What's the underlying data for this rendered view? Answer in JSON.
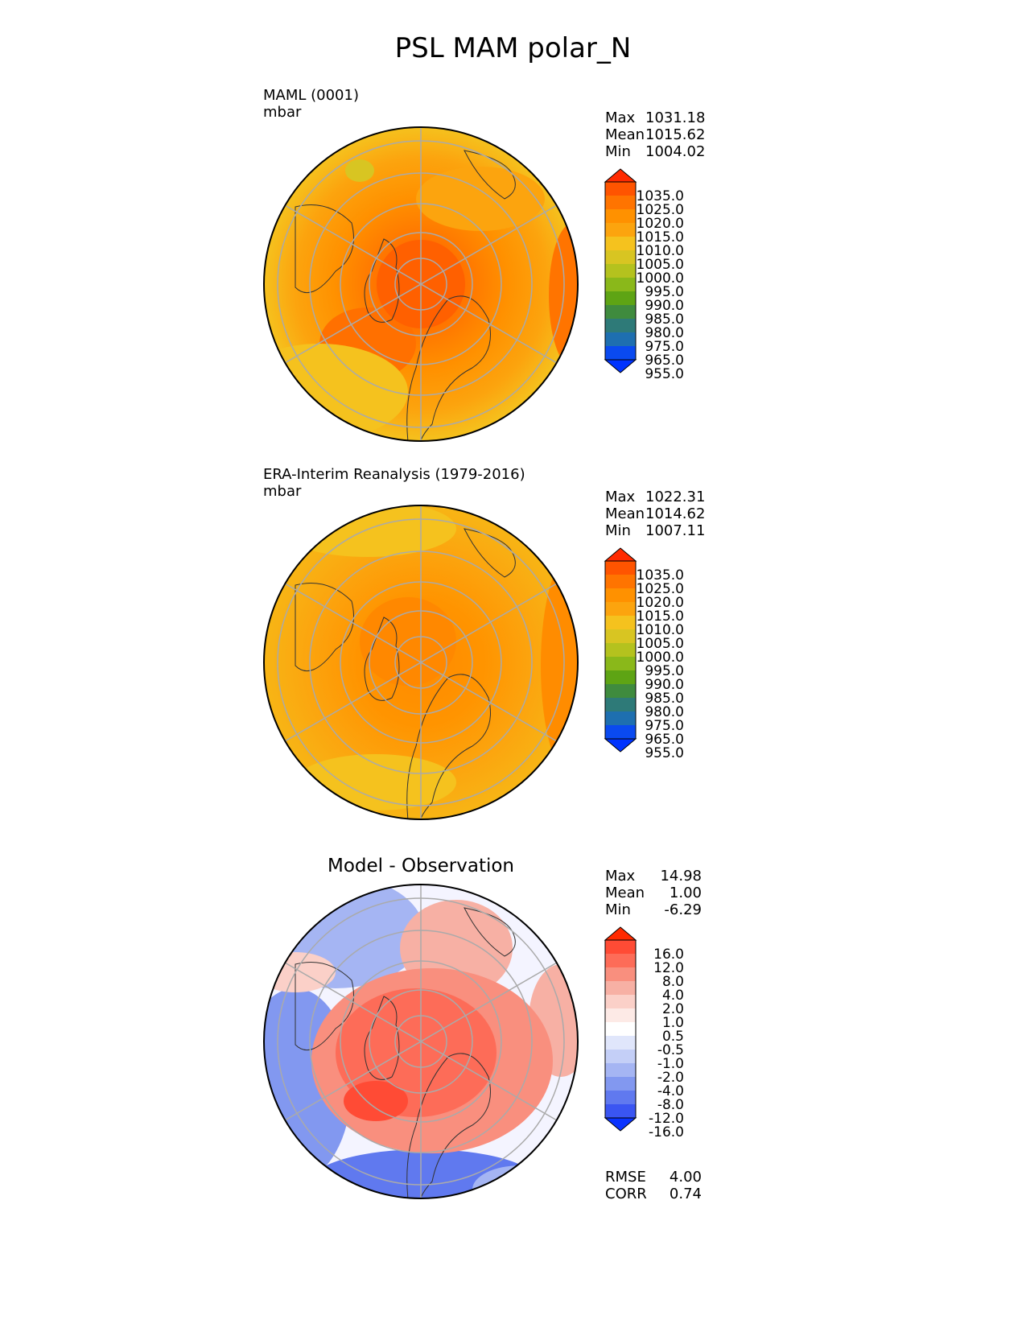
{
  "title": "PSL MAM polar_N",
  "panels": [
    {
      "id": "model",
      "label_line1": "MAML (0001)",
      "label_line2": "mbar",
      "stats": [
        {
          "key": "Max",
          "value": "1031.18"
        },
        {
          "key": "Mean",
          "value": "1015.62"
        },
        {
          "key": "Min",
          "value": "1004.02"
        }
      ]
    },
    {
      "id": "obs",
      "label_line1": "ERA-Interim Reanalysis (1979-2016)",
      "label_line2": "mbar",
      "stats": [
        {
          "key": "Max",
          "value": "1022.31"
        },
        {
          "key": "Mean",
          "value": "1014.62"
        },
        {
          "key": "Min",
          "value": "1007.11"
        }
      ]
    },
    {
      "id": "diff",
      "subtitle": "Model - Observation",
      "stats": [
        {
          "key": "Max",
          "value": "14.98"
        },
        {
          "key": "Mean",
          "value": "1.00"
        },
        {
          "key": "Min",
          "value": "-6.29"
        }
      ],
      "metrics": [
        {
          "key": "RMSE",
          "value": "4.00"
        },
        {
          "key": "CORR",
          "value": "0.74"
        }
      ]
    }
  ],
  "chart_data": [
    {
      "type": "heatmap",
      "projection": "north-polar-stereographic",
      "variable": "PSL",
      "season": "MAM",
      "units": "mbar",
      "source": "MAML (0001)",
      "colorbar_labels": [
        "1035.0",
        "1025.0",
        "1020.0",
        "1015.0",
        "1010.0",
        "1005.0",
        "1000.0",
        "995.0",
        "990.0",
        "985.0",
        "980.0",
        "975.0",
        "965.0",
        "955.0"
      ],
      "colorbar_colors": [
        "#ff2a00",
        "#ff5400",
        "#ff7400",
        "#ff9100",
        "#fca40e",
        "#f5c21e",
        "#d8c522",
        "#b4c21e",
        "#8ab81a",
        "#5ea414",
        "#3f8b3e",
        "#2e7a78",
        "#1e6fb0",
        "#0a4af0",
        "#0033ff"
      ],
      "stats": {
        "max": 1031.18,
        "mean": 1015.62,
        "min": 1004.02
      }
    },
    {
      "type": "heatmap",
      "projection": "north-polar-stereographic",
      "variable": "PSL",
      "season": "MAM",
      "units": "mbar",
      "source": "ERA-Interim Reanalysis (1979-2016)",
      "colorbar_labels": [
        "1035.0",
        "1025.0",
        "1020.0",
        "1015.0",
        "1010.0",
        "1005.0",
        "1000.0",
        "995.0",
        "990.0",
        "985.0",
        "980.0",
        "975.0",
        "965.0",
        "955.0"
      ],
      "colorbar_colors": [
        "#ff2a00",
        "#ff5400",
        "#ff7400",
        "#ff9100",
        "#fca40e",
        "#f5c21e",
        "#d8c522",
        "#b4c21e",
        "#8ab81a",
        "#5ea414",
        "#3f8b3e",
        "#2e7a78",
        "#1e6fb0",
        "#0a4af0",
        "#0033ff"
      ],
      "stats": {
        "max": 1022.31,
        "mean": 1014.62,
        "min": 1007.11
      }
    },
    {
      "type": "heatmap",
      "projection": "north-polar-stereographic",
      "variable": "PSL",
      "title": "Model - Observation",
      "colorbar_labels": [
        "16.0",
        "12.0",
        "8.0",
        "4.0",
        "2.0",
        "1.0",
        "0.5",
        "-0.5",
        "-1.0",
        "-2.0",
        "-4.0",
        "-8.0",
        "-12.0",
        "-16.0"
      ],
      "colorbar_colors": [
        "#ff2a00",
        "#ff4b35",
        "#fd6c58",
        "#f98f7e",
        "#f7b0a4",
        "#fbd0c8",
        "#fdeae6",
        "#ffffff",
        "#e0e6fb",
        "#c4cff7",
        "#a5b5f3",
        "#8298f0",
        "#6079ef",
        "#3a55f2",
        "#0a33ff"
      ],
      "stats": {
        "max": 14.98,
        "mean": 1.0,
        "min": -6.29,
        "rmse": 4.0,
        "corr": 0.74
      }
    }
  ]
}
